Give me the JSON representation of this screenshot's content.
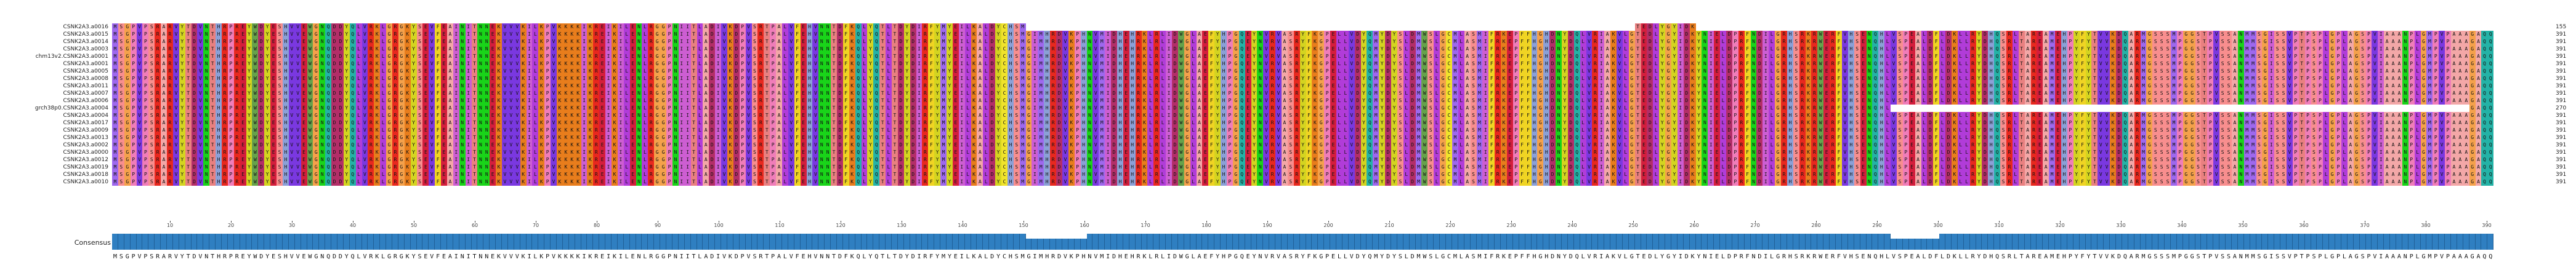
{
  "sequence_names": [
    "CSNK2A3.a0016",
    "CSNK2A3.a0015",
    "CSNK2A3.a0014",
    "CSNK2A3.a0003",
    "chm13v2.CSNK2A3.a0001",
    "CSNK2A3.a0001",
    "CSNK2A3.a0005",
    "CSNK2A3.a0008",
    "CSNK2A3.a0011",
    "CSNK2A3.a0007",
    "CSNK2A3.a0006",
    "grch38p0.CSNK2A3.a0004",
    "CSNK2A3.a0004",
    "CSNK2A3.a0017",
    "CSNK2A3.a0009",
    "CSNK2A3.a0013",
    "CSNK2A3.a0002",
    "CSNK2A3.a0000",
    "CSNK2A3.a0012",
    "CSNK2A3.a0019",
    "CSNK2A3.a0018",
    "CSNK2A3.a0010"
  ],
  "end_numbers": [
    "155",
    "391",
    "391",
    "391",
    "391",
    "391",
    "391",
    "391",
    "391",
    "391",
    "391",
    "270",
    "391",
    "391",
    "391",
    "391",
    "391",
    "391",
    "391",
    "391",
    "391",
    "391"
  ],
  "ruler_ticks": [
    "10",
    "20",
    "30",
    "40",
    "50",
    "60",
    "70",
    "80",
    "90",
    "100",
    "110",
    "120",
    "130",
    "140",
    "150",
    "160",
    "170",
    "180",
    "190",
    "200",
    "210",
    "220",
    "230",
    "240",
    "250",
    "260",
    "270",
    "280",
    "290",
    "300",
    "310",
    "320",
    "330",
    "340",
    "350",
    "360",
    "370",
    "380",
    "390"
  ],
  "consensus_label": "Consensus",
  "consensus_sequence": "MSGPVPSRARVYTDVNTHRPREYWDYESHVVEWGNQDDYQLVRKLGRGKYSEVFEAINITNNEKVVVKILKPVKKKKIKREIKILENLRGGPNIITLADIVKDPVSRTPALVFEHVNNTDFKQLYQTLTDYDIRFYMYEILKALDYCHSMGIMHRDVKPHNVMIDHEHRKLRLIDWGLAEFYHPGQEYNVRVASRYFKGPELLVDYQMYDYSLDMWSLGCMLASMIFRKEPFFHGHDNYDQLVRIAKVLGTEDLYGYIDKYNIELDPRFNDILGRHSRKRWERFVHSENQHLVSPEALDFLDKLLRYDHQSRLTAREAMEHPYFYTVVKDQARMGSSSMPGGSTPVSSANMMSGISSVPTPSPLGPLAGSPVIAAANPLGMPVPAAAGAQQ",
  "residue_colors": {
    "A": "#f3a7a7",
    "R": "#e8281e",
    "N": "#19d419",
    "D": "#b32e68",
    "C": "#f0e32b",
    "Q": "#24b2a6",
    "E": "#d41e3c",
    "G": "#f4a14b",
    "H": "#8ba0d7",
    "I": "#cd5ed2",
    "L": "#b13cd9",
    "K": "#e87d1c",
    "M": "#9e68ee",
    "F": "#f0d423",
    "P": "#f07db9",
    "S": "#f88e8e",
    "T": "#e98080",
    "W": "#66a24b",
    "Y": "#d4d420",
    "V": "#7a38e0",
    "-": "#ffffff"
  },
  "consensus_bar_color": "#2f7fc1"
}
